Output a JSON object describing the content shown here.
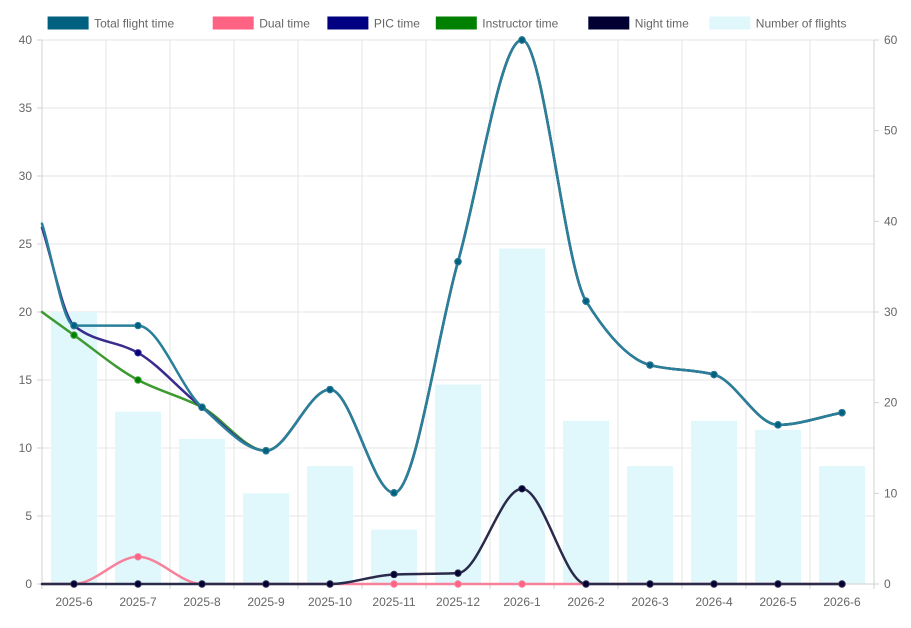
{
  "chart_data": {
    "type": "line",
    "categories": [
      "2025-6",
      "2025-7",
      "2025-8",
      "2025-9",
      "2025-10",
      "2025-11",
      "2025-12",
      "2026-1",
      "2026-2",
      "2026-3",
      "2026-4",
      "2026-5",
      "2026-6"
    ],
    "y_left": {
      "min": 0,
      "max": 40,
      "ticks": [
        0,
        5,
        10,
        15,
        20,
        25,
        30,
        35,
        40
      ]
    },
    "y_right": {
      "min": 0,
      "max": 60,
      "ticks": [
        0,
        10,
        20,
        30,
        40,
        50,
        60
      ]
    },
    "grid": true,
    "legend_position": "top",
    "bar_series": {
      "name": "Number of flights",
      "axis": "right",
      "color": "#e0f7fc",
      "values": [
        30,
        19,
        16,
        10,
        13,
        6,
        22,
        37,
        18,
        13,
        18,
        17,
        13
      ]
    },
    "series": [
      {
        "name": "Total flight time",
        "axis": "left",
        "color": "#006080",
        "stroke": "#2a7f9a",
        "start": 26.5,
        "values": [
          19,
          19,
          13,
          9.8,
          14.3,
          6.7,
          23.7,
          40,
          20.8,
          16.1,
          15.4,
          11.7,
          12.6
        ]
      },
      {
        "name": "Dual time",
        "axis": "left",
        "color": "#ff6384",
        "stroke": "#f7819b",
        "start": 0,
        "values": [
          0,
          2,
          0,
          0,
          0,
          0,
          0,
          0,
          0,
          0,
          0,
          0,
          0
        ]
      },
      {
        "name": "PIC time",
        "axis": "left",
        "color": "#000080",
        "stroke": "#3a2c8c",
        "start": 26.2,
        "values": [
          19,
          17,
          13,
          9.8,
          14.3,
          6.7,
          23.7,
          40,
          20.8,
          16.1,
          15.4,
          11.7,
          12.6
        ]
      },
      {
        "name": "Instructor time",
        "axis": "left",
        "color": "#008000",
        "stroke": "#3c9a30",
        "start": 20,
        "values": [
          18.3,
          15,
          13,
          9.8,
          14.3,
          6.7,
          23.7,
          40,
          20.8,
          16.1,
          15.4,
          11.7,
          12.6
        ]
      },
      {
        "name": "Night time",
        "axis": "left",
        "color": "#000033",
        "stroke": "#2a2a4a",
        "start": 0,
        "values": [
          0,
          0,
          0,
          0,
          0,
          0.7,
          0.8,
          7,
          0,
          0,
          0,
          0,
          0
        ]
      }
    ]
  }
}
